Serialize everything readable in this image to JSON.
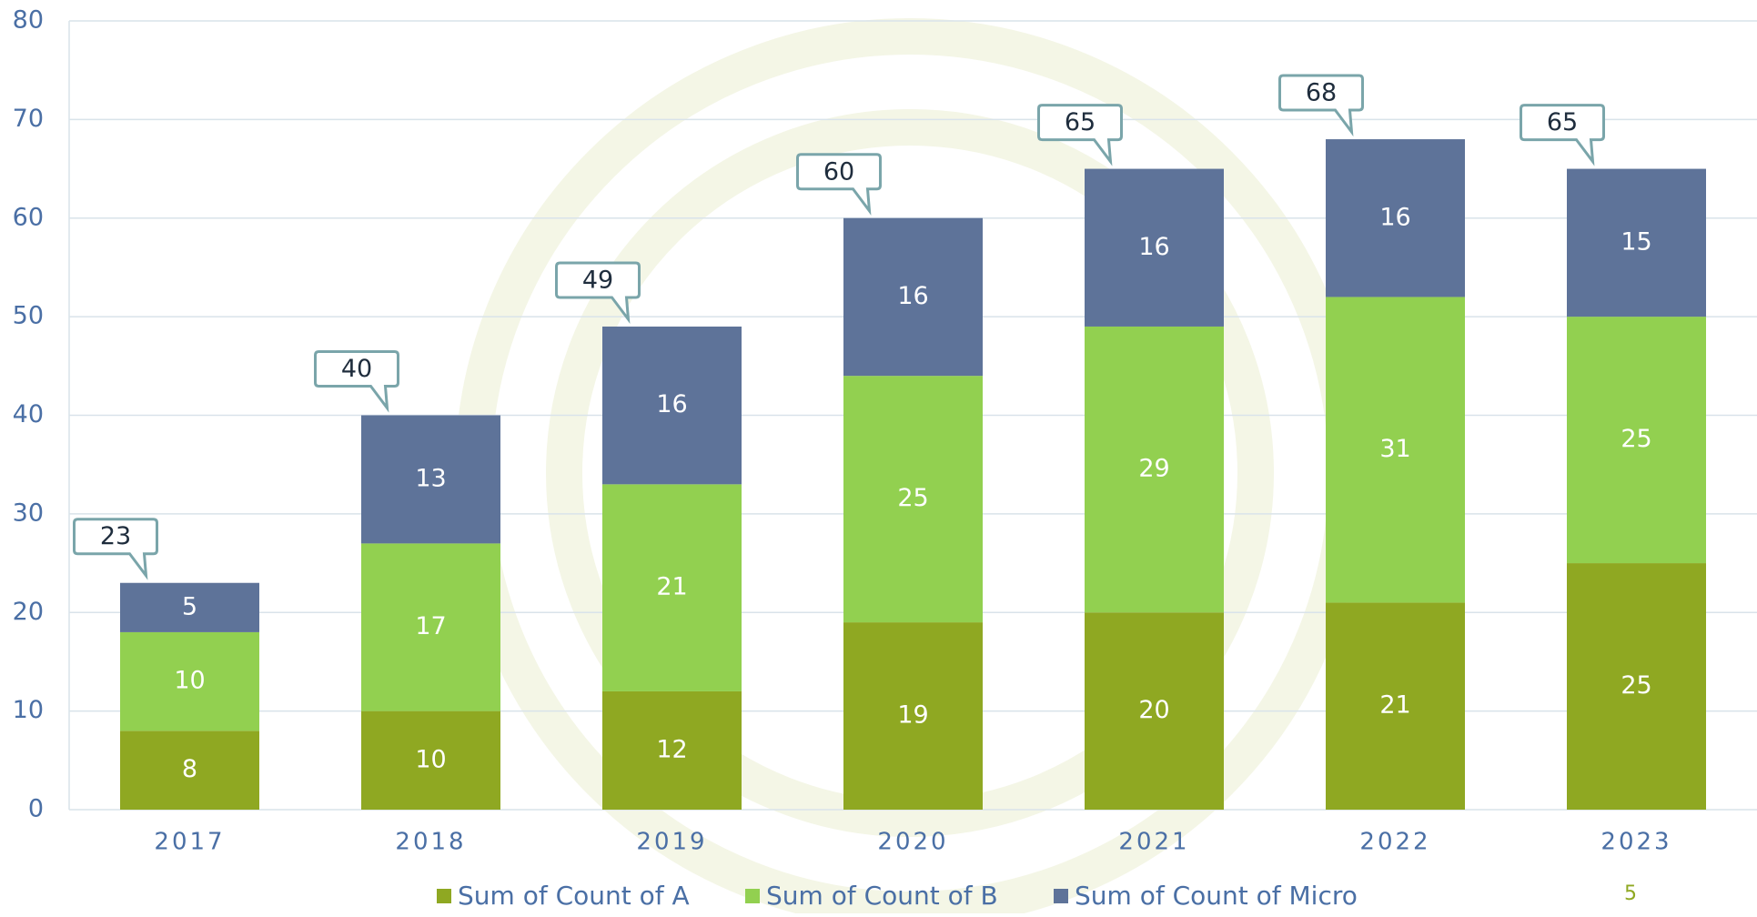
{
  "chart_data": {
    "type": "stacked_bar",
    "categories": [
      "2017",
      "2018",
      "2019",
      "2020",
      "2021",
      "2022",
      "2023"
    ],
    "series": [
      {
        "name": "Sum of Count of A",
        "color": "#8fa822",
        "values": [
          8,
          10,
          12,
          19,
          20,
          21,
          25
        ]
      },
      {
        "name": "Sum of Count of B",
        "color": "#92d050",
        "values": [
          10,
          17,
          21,
          25,
          29,
          31,
          25
        ]
      },
      {
        "name": "Sum of Count of Micro",
        "color": "#5e7399",
        "values": [
          5,
          13,
          16,
          16,
          16,
          16,
          15
        ]
      }
    ],
    "totals": [
      23,
      40,
      49,
      60,
      65,
      68,
      65
    ],
    "ylim": [
      0,
      80
    ],
    "yticks": [
      0,
      10,
      20,
      30,
      40,
      50,
      60,
      70,
      80
    ],
    "grid": true,
    "legend": "bottom",
    "page_number": 5
  }
}
